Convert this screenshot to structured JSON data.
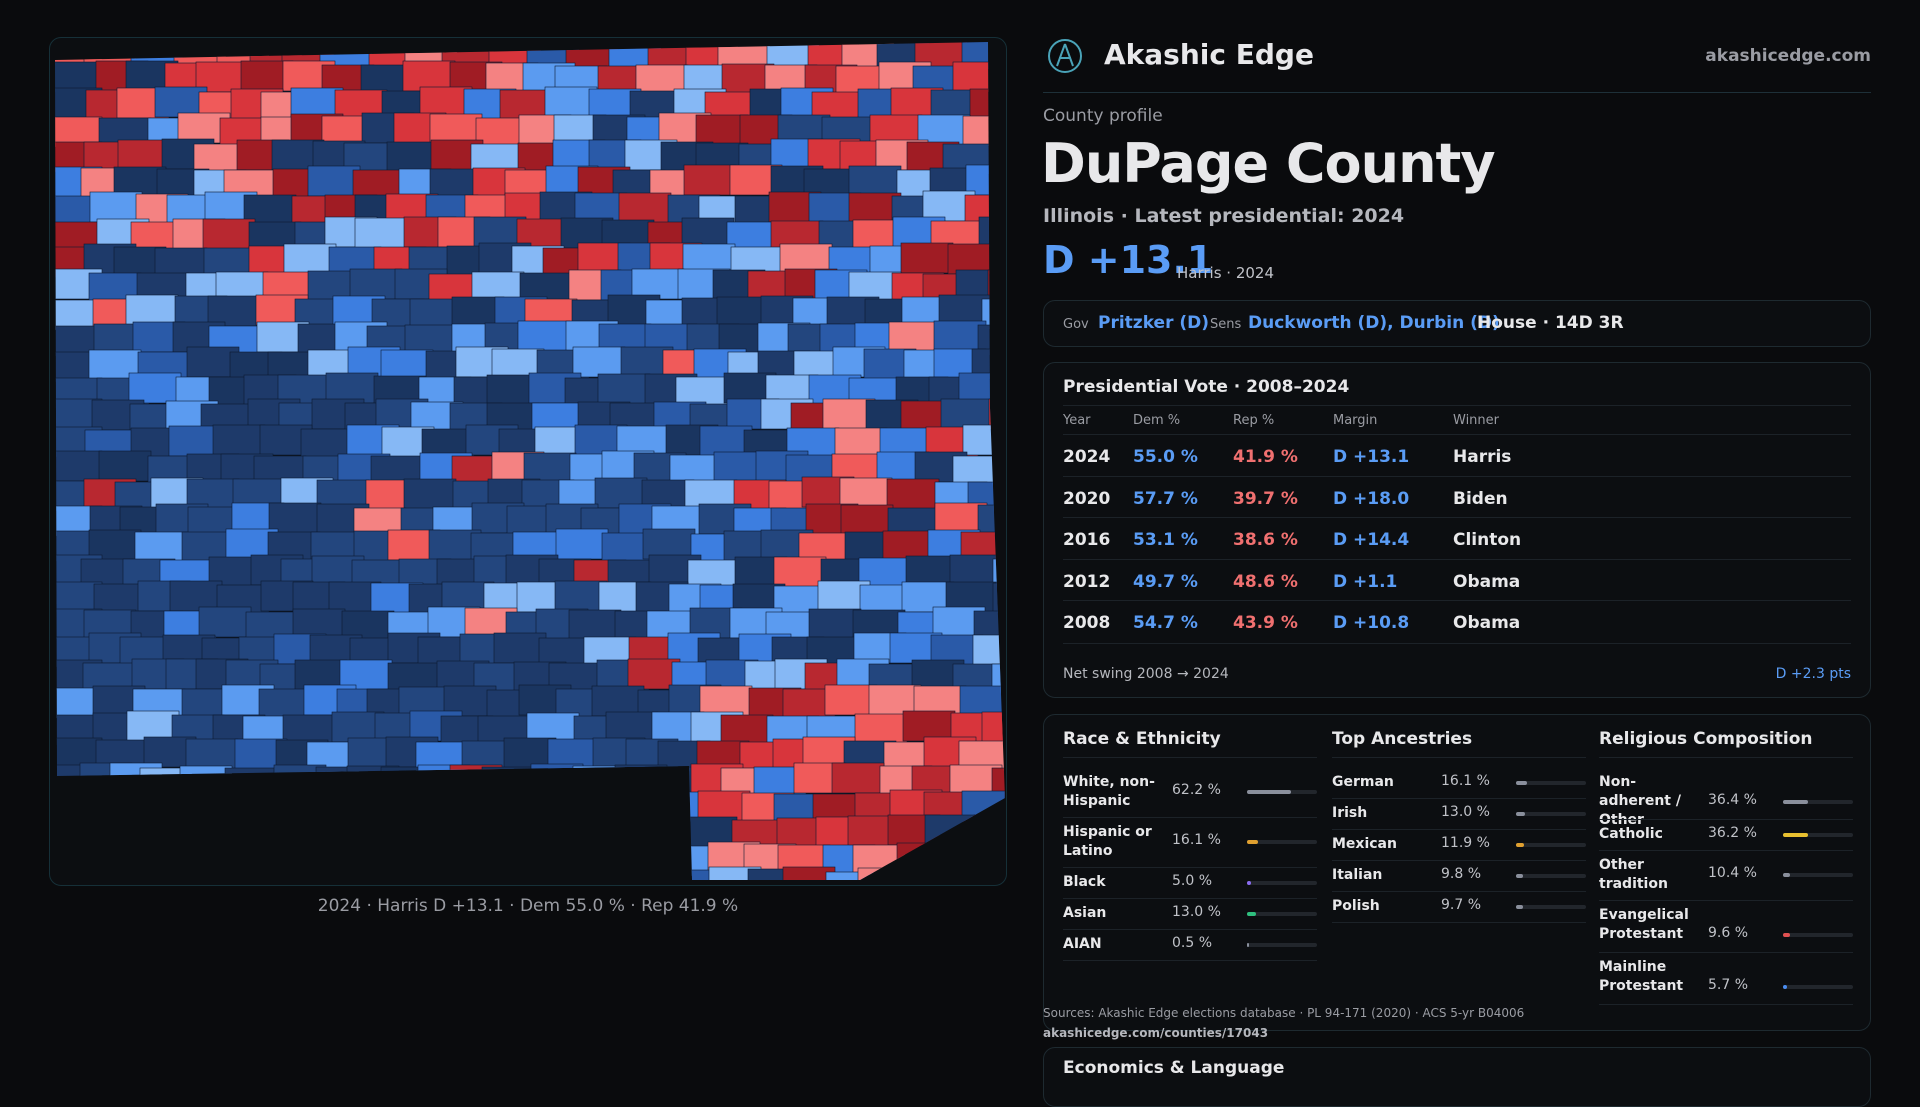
{
  "header": {
    "brand": "Akashic Edge",
    "site": "akashicedge.com"
  },
  "profile": {
    "kicker": "County profile",
    "title": "DuPage County",
    "subtitle": "Illinois · Latest presidential: 2024",
    "margin": "D +13.1",
    "margin_note": "Harris · 2024"
  },
  "officials": {
    "gov_label": "Gov",
    "gov": "Pritzker (D)",
    "sens_label": "Sens",
    "sens": "Duckworth (D), Durbin (D)",
    "house": "House · 14D 3R"
  },
  "presidential": {
    "title": "Presidential Vote · 2008–2024",
    "columns": [
      "Year",
      "Dem %",
      "Rep %",
      "Margin",
      "Winner"
    ],
    "rows": [
      [
        "2024",
        "55.0 %",
        "41.9 %",
        "D +13.1",
        "Harris"
      ],
      [
        "2020",
        "57.7 %",
        "39.7 %",
        "D +18.0",
        "Biden"
      ],
      [
        "2016",
        "53.1 %",
        "38.6 %",
        "D +14.4",
        "Clinton"
      ],
      [
        "2012",
        "49.7 %",
        "48.6 %",
        "D +1.1",
        "Obama"
      ],
      [
        "2008",
        "54.7 %",
        "43.9 %",
        "D +10.8",
        "Obama"
      ]
    ],
    "swing_label": "Net swing 2008 → 2024",
    "swing": "D +2.3 pts"
  },
  "demographics": [
    {
      "title": "Race & Ethnicity",
      "items": [
        {
          "label": "White, non-Hispanic",
          "value": 62.2,
          "value_label": "62.2 %",
          "color": "#8a8f9c"
        },
        {
          "label": "Hispanic or Latino",
          "value": 16.1,
          "value_label": "16.1 %",
          "color": "#e0a030"
        },
        {
          "label": "Black",
          "value": 5.0,
          "value_label": "5.0 %",
          "color": "#8a6cf0"
        },
        {
          "label": "Asian",
          "value": 13.0,
          "value_label": "13.0 %",
          "color": "#2fbf7f"
        },
        {
          "label": "AIAN",
          "value": 0.5,
          "value_label": "0.5 %",
          "color": "#8a8f9c"
        }
      ]
    },
    {
      "title": "Top Ancestries",
      "items": [
        {
          "label": "German",
          "value": 16.1,
          "value_label": "16.1 %",
          "color": "#8a8f9c"
        },
        {
          "label": "Irish",
          "value": 13.0,
          "value_label": "13.0 %",
          "color": "#8a8f9c"
        },
        {
          "label": "Mexican",
          "value": 11.9,
          "value_label": "11.9 %",
          "color": "#e0a030"
        },
        {
          "label": "Italian",
          "value": 9.8,
          "value_label": "9.8 %",
          "color": "#8a8f9c"
        },
        {
          "label": "Polish",
          "value": 9.7,
          "value_label": "9.7 %",
          "color": "#8a8f9c"
        }
      ]
    },
    {
      "title": "Religious Composition",
      "items": [
        {
          "label": "Non-adherent / Other",
          "value": 36.4,
          "value_label": "36.4 %",
          "color": "#8a8f9c"
        },
        {
          "label": "Catholic",
          "value": 36.2,
          "value_label": "36.2 %",
          "color": "#e8c030"
        },
        {
          "label": "Other tradition",
          "value": 10.4,
          "value_label": "10.4 %",
          "color": "#8a8f9c"
        },
        {
          "label": "Evangelical Protestant",
          "value": 9.6,
          "value_label": "9.6 %",
          "color": "#e05050"
        },
        {
          "label": "Mainline Protestant",
          "value": 5.7,
          "value_label": "5.7 %",
          "color": "#4a8cf0"
        }
      ]
    }
  ],
  "sources": "Sources: Akashic Edge elections database · PL 94-171 (2020) · ACS 5-yr B04006",
  "source_url": "akashicedge.com/counties/17043",
  "map_caption": "2024 · Harris D +13.1 · Dem 55.0 % · Rep 41.9 %",
  "next_section": "Economics & Language"
}
